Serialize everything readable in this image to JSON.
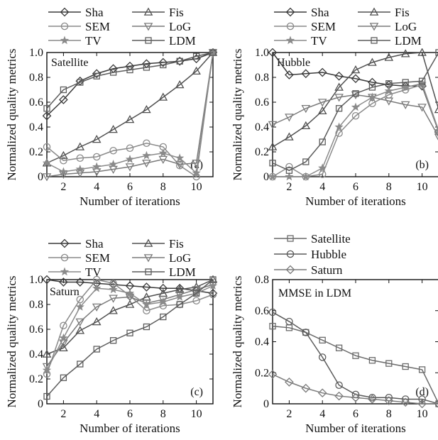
{
  "colors": {
    "Sha": "#3a3a3a",
    "Fis": "#505050",
    "SEM": "#8a8a8a",
    "LoG": "#7a7a7a",
    "TV": "#8a8a8a",
    "LDM": "#5c5c5c",
    "Satellite": "#6a6a6a",
    "Hubble": "#5a5a5a",
    "Saturn": "#7a7a7a"
  },
  "chart_data": [
    {
      "type": "line",
      "tag": "(a)",
      "inner_label": "Satellite",
      "xlabel": "Number of iterations",
      "ylabel": "Normalized quality metrics",
      "xlim": [
        1,
        11
      ],
      "ylim": [
        0,
        1
      ],
      "xticks": [
        2,
        4,
        6,
        8,
        10
      ],
      "yticks": [
        "0",
        "0.2",
        "0.4",
        "0.6",
        "0.8",
        "1.0"
      ],
      "x": [
        1,
        2,
        3,
        4,
        5,
        6,
        7,
        8,
        9,
        10,
        11
      ],
      "series": [
        {
          "name": "Sha",
          "marker": "diamond",
          "values": [
            0.49,
            0.62,
            0.77,
            0.83,
            0.87,
            0.89,
            0.91,
            0.92,
            0.93,
            0.95,
            1.0
          ]
        },
        {
          "name": "Fis",
          "marker": "triangle",
          "values": [
            0.11,
            0.17,
            0.24,
            0.3,
            0.38,
            0.46,
            0.54,
            0.64,
            0.74,
            0.85,
            1.0
          ]
        },
        {
          "name": "SEM",
          "marker": "circle",
          "values": [
            0.24,
            0.13,
            0.15,
            0.16,
            0.21,
            0.23,
            0.27,
            0.24,
            0.09,
            0.0,
            1.0
          ]
        },
        {
          "name": "LoG",
          "marker": "triangle-down",
          "values": [
            0.0,
            0.02,
            0.03,
            0.04,
            0.06,
            0.08,
            0.11,
            0.14,
            0.1,
            0.11,
            1.0
          ]
        },
        {
          "name": "TV",
          "marker": "star",
          "values": [
            0.11,
            0.04,
            0.06,
            0.08,
            0.1,
            0.14,
            0.17,
            0.19,
            0.15,
            0.03,
            1.0
          ]
        },
        {
          "name": "LDM",
          "marker": "square",
          "values": [
            0.55,
            0.7,
            0.76,
            0.81,
            0.84,
            0.86,
            0.88,
            0.9,
            0.93,
            0.97,
            1.0
          ]
        }
      ]
    },
    {
      "type": "line",
      "tag": "(b)",
      "inner_label": "Hubble",
      "xlabel": "Number of iterations",
      "ylabel": "Normalized quality metrics",
      "xlim": [
        1,
        11
      ],
      "ylim": [
        0,
        1
      ],
      "xticks": [
        2,
        4,
        6,
        8,
        10
      ],
      "yticks": [
        "0",
        "0.2",
        "0.4",
        "0.6",
        "0.8",
        "1.0"
      ],
      "x": [
        1,
        2,
        3,
        4,
        5,
        6,
        7,
        8,
        9,
        10,
        11
      ],
      "series": [
        {
          "name": "Sha",
          "marker": "diamond",
          "values": [
            1.0,
            0.82,
            0.83,
            0.84,
            0.81,
            0.79,
            0.76,
            0.74,
            0.73,
            0.73,
            0.36
          ]
        },
        {
          "name": "Fis",
          "marker": "triangle",
          "values": [
            0.24,
            0.32,
            0.41,
            0.53,
            0.72,
            0.86,
            0.92,
            0.96,
            0.99,
            1.0,
            0.54
          ]
        },
        {
          "name": "SEM",
          "marker": "circle",
          "values": [
            0.0,
            0.08,
            0.0,
            0.02,
            0.35,
            0.49,
            0.59,
            0.66,
            0.7,
            0.74,
            0.36
          ]
        },
        {
          "name": "LoG",
          "marker": "triangle-down",
          "values": [
            0.42,
            0.48,
            0.55,
            0.6,
            0.64,
            0.66,
            0.64,
            0.61,
            0.58,
            0.56,
            0.32
          ]
        },
        {
          "name": "TV",
          "marker": "star",
          "values": [
            0.0,
            0.0,
            0.0,
            0.07,
            0.4,
            0.56,
            0.64,
            0.69,
            0.72,
            0.75,
            0.37
          ]
        },
        {
          "name": "LDM",
          "marker": "square",
          "values": [
            0.11,
            0.05,
            0.12,
            0.28,
            0.55,
            0.67,
            0.72,
            0.75,
            0.76,
            0.77,
            1.0
          ]
        }
      ]
    },
    {
      "type": "line",
      "tag": "(c)",
      "inner_label": "Saturn",
      "xlabel": "Number of iterations",
      "ylabel": "Normalized quality metrics",
      "xlim": [
        1,
        11
      ],
      "ylim": [
        0,
        1
      ],
      "xticks": [
        2,
        4,
        6,
        8,
        10
      ],
      "yticks": [
        "0",
        "0.2",
        "0.4",
        "0.6",
        "0.8",
        "1.0"
      ],
      "x": [
        1,
        2,
        3,
        4,
        5,
        6,
        7,
        8,
        9,
        10,
        11
      ],
      "series": [
        {
          "name": "Sha",
          "marker": "diamond",
          "values": [
            1.0,
            0.98,
            0.98,
            0.97,
            0.96,
            0.95,
            0.94,
            0.93,
            0.93,
            0.91,
            0.89
          ]
        },
        {
          "name": "Fis",
          "marker": "triangle",
          "values": [
            0.4,
            0.45,
            0.59,
            0.66,
            0.75,
            0.8,
            0.86,
            0.89,
            0.92,
            0.94,
            1.0
          ]
        },
        {
          "name": "SEM",
          "marker": "circle",
          "values": [
            0.24,
            0.63,
            0.84,
            1.0,
            0.97,
            0.87,
            0.75,
            0.79,
            0.8,
            0.83,
            0.88
          ]
        },
        {
          "name": "LoG",
          "marker": "triangle-down",
          "values": [
            0.3,
            0.49,
            0.66,
            0.78,
            0.85,
            0.86,
            0.81,
            0.84,
            0.88,
            0.92,
            0.96
          ]
        },
        {
          "name": "TV",
          "marker": "star",
          "values": [
            0.27,
            0.53,
            0.78,
            0.93,
            0.92,
            0.89,
            0.8,
            0.82,
            0.86,
            0.89,
            0.95
          ]
        },
        {
          "name": "LDM",
          "marker": "square",
          "values": [
            0.06,
            0.21,
            0.32,
            0.44,
            0.51,
            0.57,
            0.62,
            0.7,
            0.8,
            0.89,
            1.0
          ]
        }
      ]
    },
    {
      "type": "line",
      "tag": "(d)",
      "inner_label": "MMSE in LDM",
      "xlabel": "Number of iterations",
      "ylabel": "Normalized quality metrics",
      "xlim": [
        1,
        11
      ],
      "ylim": [
        0,
        0.8
      ],
      "xticks": [
        2,
        4,
        6,
        8,
        10
      ],
      "yticks": [
        "0",
        "0.2",
        "0.4",
        "0.6",
        "0.8"
      ],
      "x": [
        1,
        2,
        3,
        4,
        5,
        6,
        7,
        8,
        9,
        10,
        11
      ],
      "series": [
        {
          "name": "Satellite",
          "marker": "square",
          "values": [
            0.5,
            0.49,
            0.46,
            0.41,
            0.36,
            0.31,
            0.28,
            0.26,
            0.24,
            0.22,
            0.0
          ]
        },
        {
          "name": "Hubble",
          "marker": "circle",
          "values": [
            0.59,
            0.53,
            0.46,
            0.3,
            0.12,
            0.06,
            0.04,
            0.04,
            0.03,
            0.03,
            0.0
          ]
        },
        {
          "name": "Saturn",
          "marker": "diamond",
          "values": [
            0.19,
            0.14,
            0.1,
            0.07,
            0.05,
            0.04,
            0.03,
            0.02,
            0.01,
            0.0,
            0.0
          ]
        }
      ]
    }
  ]
}
